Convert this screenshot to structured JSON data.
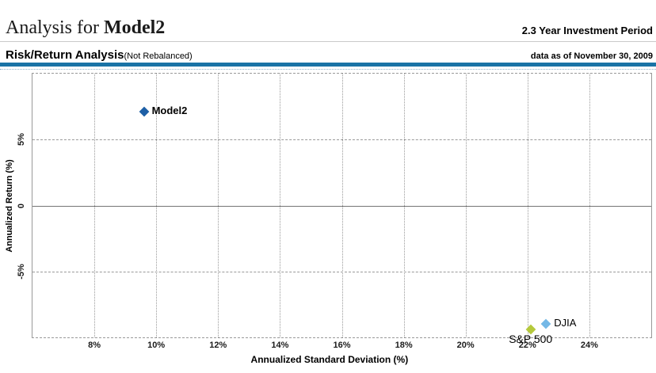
{
  "header": {
    "title_prefix": "Analysis for ",
    "title_model": "Model2",
    "investment_period": "2.3 Year Investment Period",
    "section_title": "Risk/Return Analysis",
    "section_subtitle": "(Not Rebalanced)",
    "data_as_of": "data as of November 30, 2009"
  },
  "colors": {
    "rule_blue": "#1973a6",
    "gridline": "#9a9a9a",
    "zero_line": "#757575",
    "model2_point": "#1d5fa6",
    "djia_point": "#74b8e6",
    "sp500_point": "#b5c93c"
  },
  "chart_data": {
    "type": "scatter",
    "title": "Risk/Return Analysis (Not Rebalanced)",
    "xlabel": "Annualized Standard Deviation (%)",
    "ylabel": "Annualized Return (%)",
    "xlim": [
      6,
      26
    ],
    "ylim": [
      -10,
      10
    ],
    "x_ticks": [
      8,
      10,
      12,
      14,
      16,
      18,
      20,
      22,
      24
    ],
    "x_tick_labels": [
      "8%",
      "10%",
      "12%",
      "14%",
      "16%",
      "18%",
      "20%",
      "22%",
      "24%"
    ],
    "y_ticks": [
      5,
      0,
      -5
    ],
    "y_tick_labels": [
      "5%",
      "0",
      "-5%"
    ],
    "grid": true,
    "legend_position": "none",
    "series": [
      {
        "name": "Model2",
        "x": 9.6,
        "y": 7.1,
        "color": "#1d5fa6",
        "label_position": "right",
        "bold": true
      },
      {
        "name": "DJIA",
        "x": 22.6,
        "y": -9.0,
        "color": "#74b8e6",
        "label_position": "right",
        "bold": false
      },
      {
        "name": "S&P 500",
        "x": 22.1,
        "y": -9.4,
        "color": "#b5c93c",
        "label_position": "below",
        "bold": false
      }
    ]
  }
}
